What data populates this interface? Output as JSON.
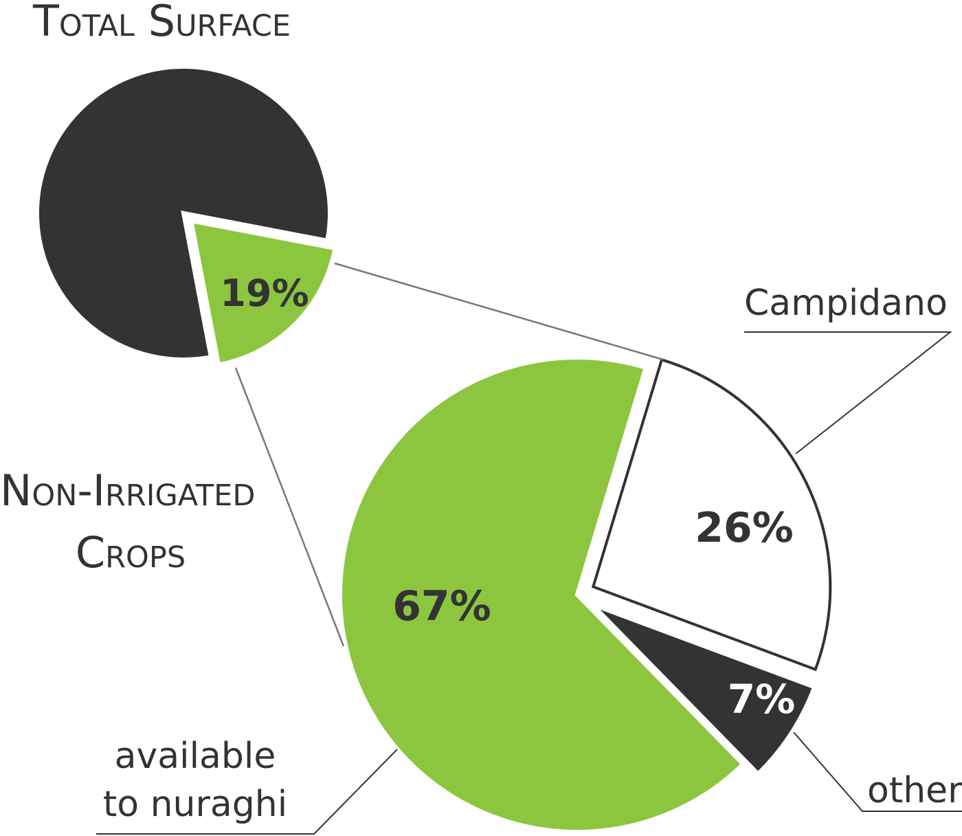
{
  "chart_data": [
    {
      "type": "pie",
      "title": "Total Surface",
      "slices": [
        {
          "label": "Non-Irrigated Crops",
          "value": 19,
          "value_label": "19%",
          "color": "#8cc63f",
          "exploded": true
        },
        {
          "value": 81,
          "color": "#333333"
        }
      ],
      "slice_label": "Non-Irrigated Crops"
    },
    {
      "type": "pie",
      "slices": [
        {
          "label": "available to nuraghi",
          "value": 67,
          "value_label": "67%",
          "color": "#8cc63f"
        },
        {
          "label": "Campidano",
          "value": 26,
          "value_label": "26%",
          "color": "#ffffff",
          "outline": "#333333"
        },
        {
          "label": "other",
          "value": 7,
          "value_label": "7%",
          "color": "#333333"
        }
      ]
    }
  ],
  "labels": {
    "title": "Total Surface",
    "non_irrigated_line1": "Non-Irrigated",
    "non_irrigated_line2": "Crops",
    "available_line1": "available",
    "available_line2": "to nuraghi",
    "campidano": "Campidano",
    "other": "other"
  }
}
